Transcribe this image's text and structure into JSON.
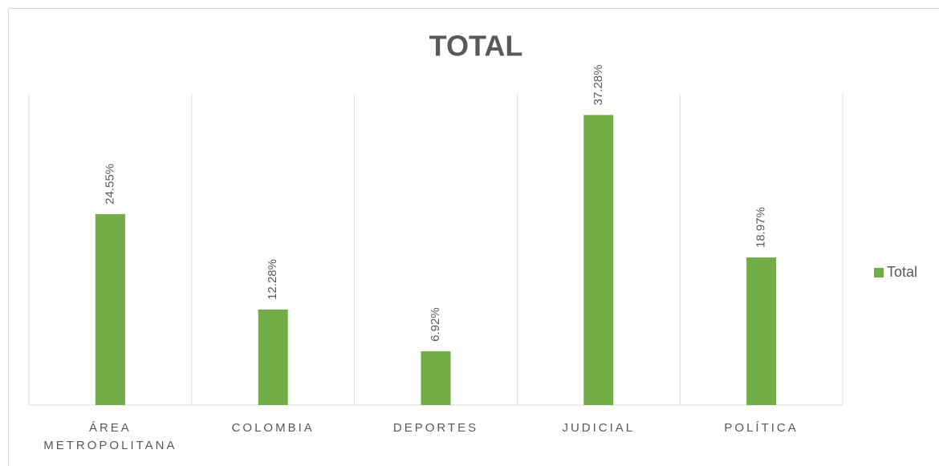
{
  "chart_data": {
    "type": "bar",
    "title": "TOTAL",
    "categories": [
      "ÁREA METROPOLITANA",
      "COLOMBIA",
      "DEPORTES",
      "JUDICIAL",
      "POLÍTICA"
    ],
    "series": [
      {
        "name": "Total",
        "color": "#70ad47",
        "values": [
          24.55,
          12.28,
          6.92,
          37.28,
          18.97
        ],
        "value_labels": [
          "24.55%",
          "12.28%",
          "6.92%",
          "37.28%",
          "18.97%"
        ]
      }
    ],
    "ylim": [
      0,
      40
    ],
    "legend": "right"
  }
}
